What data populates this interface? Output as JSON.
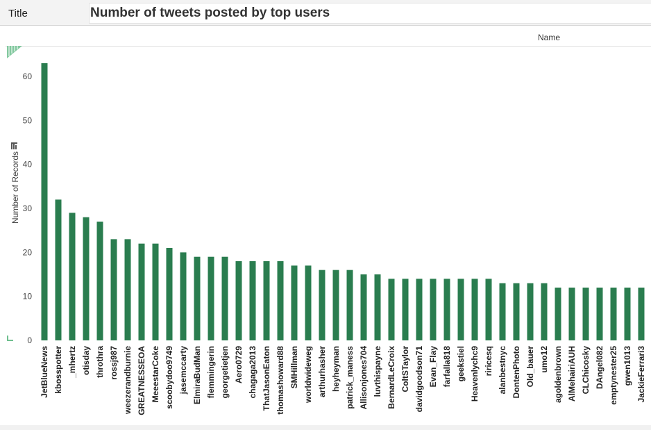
{
  "header": {
    "title_label": "Title",
    "title_text": "Number of tweets posted by top users",
    "column_header": "Name"
  },
  "colors": {
    "bar": "#2a7d4f",
    "accent": "#4caf7d"
  },
  "icons": {
    "sort": "sort-icon",
    "corner": "resize-corner-icon"
  },
  "chart_data": {
    "type": "bar",
    "title": "Number of tweets posted by top users",
    "xlabel": "Name",
    "ylabel": "Number of Records",
    "ylim": [
      0,
      65
    ],
    "yticks": [
      0,
      10,
      20,
      30,
      40,
      50,
      60
    ],
    "grid": false,
    "categories": [
      "JetBlueNews",
      "kbosspotter",
      "_mhertz",
      "otisday",
      "throthra",
      "rossj987",
      "weezerandburnie",
      "GREATNESSEOA",
      "MeeestarCoke",
      "scoobydoo9749",
      "jasemccarty",
      "ElmiraBudMan",
      "flemmingerin",
      "georgetietjen",
      "Aero0729",
      "chagaga2013",
      "ThatJasonEaton",
      "thomashoward88",
      "SMHillman",
      "worldwideweg",
      "arthurhasher",
      "heyheyman",
      "patrick_maness",
      "Allisonjones704",
      "luvthispayne",
      "BernardLeCroix",
      "ColtSTaylor",
      "davidgoodson71",
      "Evan_Flay",
      "farfalla818",
      "geekstiel",
      "Heavenlychc9",
      "riricesq",
      "alanbestnyc",
      "DontenPhoto",
      "Old_bauer",
      "umo12",
      "agoldenbrown",
      "AlMehairiAUH",
      "CLChicosky",
      "DAngel082",
      "emptynester25",
      "gwen1013",
      "JackieFerrari3"
    ],
    "values": [
      63,
      32,
      29,
      28,
      27,
      23,
      23,
      22,
      22,
      21,
      20,
      19,
      19,
      19,
      18,
      18,
      18,
      18,
      17,
      17,
      16,
      16,
      16,
      15,
      15,
      14,
      14,
      14,
      14,
      14,
      14,
      14,
      14,
      13,
      13,
      13,
      13,
      12,
      12,
      12,
      12,
      12,
      12,
      12
    ]
  }
}
